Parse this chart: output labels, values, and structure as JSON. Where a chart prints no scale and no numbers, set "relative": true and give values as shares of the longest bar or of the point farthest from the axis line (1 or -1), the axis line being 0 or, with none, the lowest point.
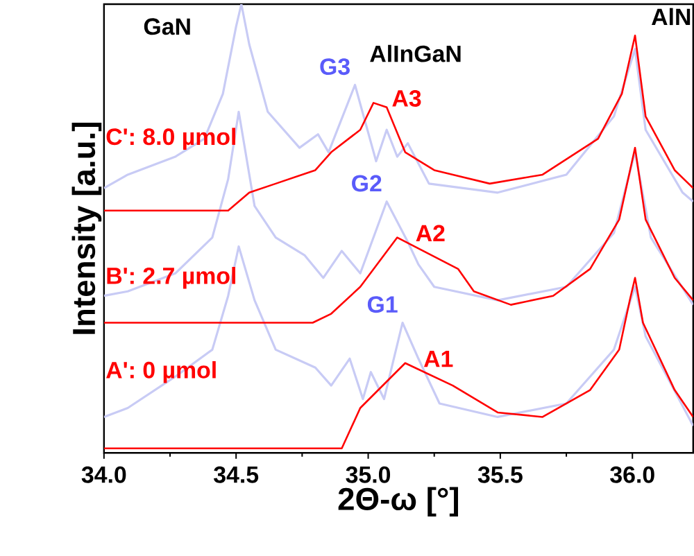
{
  "chart_data": {
    "type": "line",
    "relative": true,
    "xlabel": "2Θ-ω [°]",
    "ylabel": "Intensity [a.u.]",
    "xlim": [
      34.0,
      36.23
    ],
    "xticks": [
      {
        "value": 34.0,
        "label": "34.0"
      },
      {
        "value": 34.5,
        "label": "34.5"
      },
      {
        "value": 35.0,
        "label": "35.0"
      },
      {
        "value": 35.5,
        "label": "35.5"
      },
      {
        "value": 36.0,
        "label": "36.0"
      }
    ],
    "annotations": [
      "GaN",
      "AlInGaN",
      "AlN",
      "C': 8.0 µmol",
      "B': 2.7 µmol",
      "A': 0 µmol"
    ],
    "series": [
      {
        "name": "G3",
        "color": "#c8cbf5",
        "x": [
          34.0,
          34.09,
          34.27,
          34.38,
          34.45,
          34.5,
          34.52,
          34.55,
          34.62,
          34.74,
          34.81,
          34.85,
          34.95,
          35.03,
          35.07,
          35.11,
          35.15,
          35.23,
          35.49,
          35.75,
          35.93,
          36.01,
          36.05,
          36.19,
          36.23
        ],
        "values": [
          0.59,
          0.62,
          0.66,
          0.7,
          0.8,
          0.95,
          1.0,
          0.91,
          0.76,
          0.68,
          0.71,
          0.67,
          0.82,
          0.65,
          0.72,
          0.66,
          0.69,
          0.6,
          0.58,
          0.62,
          0.75,
          0.9,
          0.72,
          0.58,
          0.56
        ]
      },
      {
        "name": "G2",
        "color": "#c8cbf5",
        "x": [
          34.0,
          34.09,
          34.27,
          34.41,
          34.47,
          34.51,
          34.57,
          34.65,
          34.76,
          34.83,
          34.9,
          34.97,
          35.07,
          35.15,
          35.19,
          35.25,
          35.49,
          35.75,
          35.93,
          36.01,
          36.07,
          36.23
        ],
        "values": [
          0.35,
          0.36,
          0.4,
          0.48,
          0.61,
          0.76,
          0.55,
          0.48,
          0.44,
          0.39,
          0.45,
          0.4,
          0.56,
          0.47,
          0.42,
          0.37,
          0.34,
          0.37,
          0.49,
          0.67,
          0.48,
          0.33
        ]
      },
      {
        "name": "G1",
        "color": "#c8cbf5",
        "x": [
          34.0,
          34.09,
          34.27,
          34.41,
          34.47,
          34.51,
          34.57,
          34.65,
          34.8,
          34.86,
          34.93,
          34.98,
          35.01,
          35.06,
          35.13,
          35.19,
          35.27,
          35.49,
          35.75,
          35.93,
          36.01,
          36.05,
          36.23
        ],
        "values": [
          0.08,
          0.1,
          0.17,
          0.23,
          0.35,
          0.46,
          0.34,
          0.23,
          0.19,
          0.15,
          0.21,
          0.12,
          0.18,
          0.12,
          0.29,
          0.21,
          0.11,
          0.08,
          0.11,
          0.23,
          0.37,
          0.26,
          0.06
        ]
      },
      {
        "name": "A3",
        "color": "#ff0000",
        "x": [
          34.0,
          34.47,
          34.55,
          34.65,
          34.8,
          34.86,
          34.97,
          35.02,
          35.07,
          35.14,
          35.25,
          35.46,
          35.66,
          35.87,
          35.96,
          36.01,
          36.05,
          36.16,
          36.23
        ],
        "values": [
          0.54,
          0.54,
          0.58,
          0.6,
          0.63,
          0.67,
          0.72,
          0.78,
          0.77,
          0.67,
          0.63,
          0.6,
          0.62,
          0.7,
          0.8,
          0.93,
          0.75,
          0.63,
          0.59
        ]
      },
      {
        "name": "A2",
        "color": "#ff0000",
        "x": [
          34.0,
          34.79,
          34.86,
          34.97,
          35.11,
          35.34,
          35.4,
          35.54,
          35.7,
          35.84,
          35.95,
          36.01,
          36.05,
          36.16,
          36.23
        ],
        "values": [
          0.29,
          0.29,
          0.31,
          0.37,
          0.48,
          0.41,
          0.36,
          0.33,
          0.35,
          0.41,
          0.52,
          0.68,
          0.52,
          0.39,
          0.34
        ]
      },
      {
        "name": "A1",
        "color": "#ff0000",
        "x": [
          34.0,
          34.9,
          34.97,
          35.14,
          35.32,
          35.49,
          35.66,
          35.84,
          35.95,
          35.99,
          36.01,
          36.04,
          36.16,
          36.23
        ],
        "values": [
          0.01,
          0.01,
          0.1,
          0.2,
          0.15,
          0.09,
          0.08,
          0.14,
          0.23,
          0.34,
          0.39,
          0.29,
          0.14,
          0.08
        ]
      }
    ]
  }
}
